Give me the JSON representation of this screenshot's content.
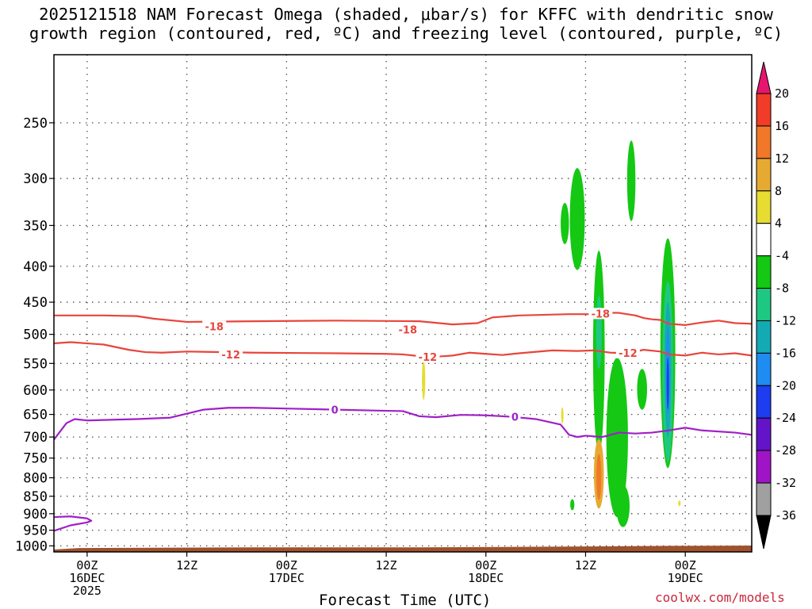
{
  "title": {
    "line1": "2025121518 NAM Forecast Omega (shaded, μbar/s) for KFFC with dendritic snow",
    "line2": "growth region (contoured, red, ºC) and freezing level (contoured, purple, ºC)"
  },
  "xlabel": "Forecast Time (UTC)",
  "credit": "coolwx.com/models",
  "chart_data": {
    "type": "heatmap",
    "title": "2025121518 NAM Forecast Omega (shaded, μbar/s) for KFFC with dendritic snow growth region (contoured, red, ºC) and freezing level (contoured, purple, ºC)",
    "xlabel": "Forecast Time (UTC)",
    "ylabel": "",
    "x_range_hours_from_00Z_16DEC": [
      -4,
      80
    ],
    "y_axis": {
      "ticks": [
        250,
        300,
        350,
        400,
        450,
        500,
        550,
        600,
        650,
        700,
        750,
        800,
        850,
        900,
        950,
        1000
      ],
      "range_hPa": [
        200,
        1020
      ],
      "inverted": true,
      "grid": true
    },
    "x_ticks": [
      {
        "h": 0,
        "label": [
          "00Z",
          "16DEC",
          "2025"
        ]
      },
      {
        "h": 12,
        "label": [
          "12Z"
        ]
      },
      {
        "h": 24,
        "label": [
          "00Z",
          "17DEC"
        ]
      },
      {
        "h": 36,
        "label": [
          "12Z"
        ]
      },
      {
        "h": 48,
        "label": [
          "00Z",
          "18DEC"
        ]
      },
      {
        "h": 60,
        "label": [
          "12Z"
        ]
      },
      {
        "h": 72,
        "label": [
          "00Z",
          "19DEC"
        ]
      }
    ],
    "colorbar": {
      "units": "μbar/s",
      "labels": [
        "20",
        "16",
        "12",
        "8",
        "4",
        "-4",
        "-8",
        "-12",
        "-16",
        "-20",
        "-24",
        "-28",
        "-32",
        "-36"
      ],
      "colors": [
        "#e6166e",
        "#f03c28",
        "#f07828",
        "#e6aa32",
        "#e6dc32",
        "#ffffff",
        "#14c814",
        "#1ec882",
        "#14aab4",
        "#1e8cf0",
        "#1e3cf0",
        "#6414c8",
        "#a014c8",
        "#a0a0a0",
        "#000000"
      ]
    },
    "contours": [
      {
        "name": "-18",
        "color": "#e8453c",
        "label_points": [
          [
            15.3,
            487
          ],
          [
            38.6,
            492
          ],
          [
            61.8,
            467
          ]
        ],
        "points": [
          [
            -4,
            470
          ],
          [
            2,
            470
          ],
          [
            6,
            471
          ],
          [
            8,
            475
          ],
          [
            12,
            480
          ],
          [
            20,
            479
          ],
          [
            30,
            478
          ],
          [
            40,
            479
          ],
          [
            44,
            484
          ],
          [
            47,
            482
          ],
          [
            48.8,
            473
          ],
          [
            52,
            470
          ],
          [
            58,
            468
          ],
          [
            61,
            468
          ],
          [
            62,
            466
          ],
          [
            64,
            466
          ],
          [
            66,
            470
          ],
          [
            67,
            474
          ],
          [
            68,
            476
          ],
          [
            69,
            477
          ],
          [
            70,
            483
          ],
          [
            72,
            485
          ],
          [
            74,
            481
          ],
          [
            76,
            478
          ],
          [
            78,
            482
          ],
          [
            80,
            483
          ]
        ]
      },
      {
        "name": "-12",
        "color": "#e8453c",
        "label_points": [
          [
            17.3,
            534
          ],
          [
            41,
            538
          ],
          [
            65.1,
            531
          ]
        ],
        "points": [
          [
            -4,
            515
          ],
          [
            -2,
            513
          ],
          [
            2,
            517
          ],
          [
            5,
            526
          ],
          [
            7,
            530
          ],
          [
            9,
            531
          ],
          [
            12,
            529
          ],
          [
            20,
            531
          ],
          [
            30,
            532
          ],
          [
            36,
            533
          ],
          [
            38,
            534
          ],
          [
            40,
            537
          ],
          [
            42,
            538
          ],
          [
            44,
            536
          ],
          [
            46,
            531
          ],
          [
            48,
            533
          ],
          [
            50,
            535
          ],
          [
            52,
            532
          ],
          [
            56,
            527
          ],
          [
            59,
            528
          ],
          [
            61,
            527
          ],
          [
            63,
            531
          ],
          [
            65,
            532
          ],
          [
            67,
            526
          ],
          [
            69,
            529
          ],
          [
            70,
            534
          ],
          [
            72,
            536
          ],
          [
            74,
            531
          ],
          [
            76,
            534
          ],
          [
            78,
            532
          ],
          [
            80,
            536
          ]
        ]
      },
      {
        "name": "0",
        "color": "#a020c8",
        "label_points": [
          [
            29.8,
            640
          ],
          [
            51.5,
            655
          ]
        ],
        "points": [
          [
            -4,
            706
          ],
          [
            -2.5,
            669
          ],
          [
            -1.5,
            660
          ],
          [
            0,
            663
          ],
          [
            2,
            662
          ],
          [
            6,
            660
          ],
          [
            10,
            657
          ],
          [
            14,
            640
          ],
          [
            17,
            636
          ],
          [
            20,
            636
          ],
          [
            25,
            638
          ],
          [
            30,
            640
          ],
          [
            35,
            642
          ],
          [
            38,
            643
          ],
          [
            40,
            654
          ],
          [
            42,
            656
          ],
          [
            45,
            651
          ],
          [
            48,
            652
          ],
          [
            51,
            655
          ],
          [
            54,
            660
          ],
          [
            57,
            672
          ],
          [
            58,
            695
          ],
          [
            59,
            700
          ],
          [
            60,
            697
          ],
          [
            62,
            700
          ],
          [
            64,
            690
          ],
          [
            66,
            692
          ],
          [
            68,
            690
          ],
          [
            70,
            685
          ],
          [
            72,
            679
          ],
          [
            74,
            685
          ],
          [
            78,
            690
          ],
          [
            80,
            695
          ]
        ]
      },
      {
        "name": "0",
        "color": "#a020c8",
        "label_points": [],
        "points": [
          [
            -4,
            910
          ],
          [
            -2,
            908
          ],
          [
            0,
            914
          ],
          [
            0.5,
            921
          ],
          [
            0,
            926
          ],
          [
            -2,
            935
          ],
          [
            -4,
            952
          ]
        ]
      }
    ],
    "omega_features": [
      {
        "band": "-8",
        "center": [
          57.5,
          345
        ],
        "half_h": 0.5,
        "p_range": [
          325,
          372
        ]
      },
      {
        "band": "-8",
        "center": [
          59.0,
          347
        ],
        "half_h": 0.9,
        "p_range": [
          290,
          405
        ]
      },
      {
        "band": "-8",
        "center": [
          65.5,
          305
        ],
        "half_h": 0.5,
        "p_range": [
          265,
          345
        ]
      },
      {
        "band": "-8",
        "center": [
          61.6,
          470
        ],
        "half_h": 0.7,
        "p_range": [
          380,
          740
        ]
      },
      {
        "band": "-12",
        "center": [
          61.6,
          490
        ],
        "half_h": 0.35,
        "p_range": [
          440,
          560
        ]
      },
      {
        "band": "-8",
        "center": [
          63.8,
          760
        ],
        "half_h": 1.3,
        "p_range": [
          540,
          910
        ]
      },
      {
        "band": "-8",
        "center": [
          64.5,
          870
        ],
        "half_h": 0.8,
        "p_range": [
          820,
          940
        ]
      },
      {
        "band": "-8",
        "center": [
          66.8,
          600
        ],
        "half_h": 0.6,
        "p_range": [
          560,
          640
        ]
      },
      {
        "band": "-8",
        "center": [
          69.9,
          555
        ],
        "half_h": 0.9,
        "p_range": [
          365,
          775
        ]
      },
      {
        "band": "-12",
        "center": [
          69.9,
          560
        ],
        "half_h": 0.65,
        "p_range": [
          420,
          760
        ]
      },
      {
        "band": "-16",
        "center": [
          69.9,
          560
        ],
        "half_h": 0.4,
        "p_range": [
          450,
          700
        ]
      },
      {
        "band": "-20",
        "center": [
          69.9,
          570
        ],
        "half_h": 0.22,
        "p_range": [
          490,
          650
        ]
      },
      {
        "band": "-24",
        "center": [
          69.9,
          590
        ],
        "half_h": 0.14,
        "p_range": [
          540,
          640
        ]
      },
      {
        "band": "8",
        "center": [
          61.6,
          790
        ],
        "half_h": 0.6,
        "p_range": [
          705,
          885
        ]
      },
      {
        "band": "12",
        "center": [
          61.6,
          790
        ],
        "half_h": 0.3,
        "p_range": [
          740,
          860
        ]
      },
      {
        "band": "4",
        "center": [
          40.5,
          590
        ],
        "half_h": 0.2,
        "p_range": [
          545,
          620
        ]
      },
      {
        "band": "4",
        "center": [
          57.2,
          650
        ],
        "half_h": 0.12,
        "p_range": [
          635,
          670
        ]
      },
      {
        "band": "4",
        "center": [
          71.3,
          870
        ],
        "half_h": 0.1,
        "p_range": [
          862,
          878
        ]
      },
      {
        "band": "-8",
        "center": [
          58.4,
          870
        ],
        "half_h": 0.25,
        "p_range": [
          858,
          890
        ]
      }
    ],
    "terrain": {
      "color": "#a0522d",
      "points": [
        [
          -4,
          1012
        ],
        [
          -1,
          1007
        ],
        [
          20,
          1005
        ],
        [
          40,
          1005
        ],
        [
          54,
          1003
        ],
        [
          60,
          1002
        ],
        [
          70,
          1000
        ],
        [
          80,
          999
        ]
      ]
    },
    "legend": "colorbar-right"
  }
}
